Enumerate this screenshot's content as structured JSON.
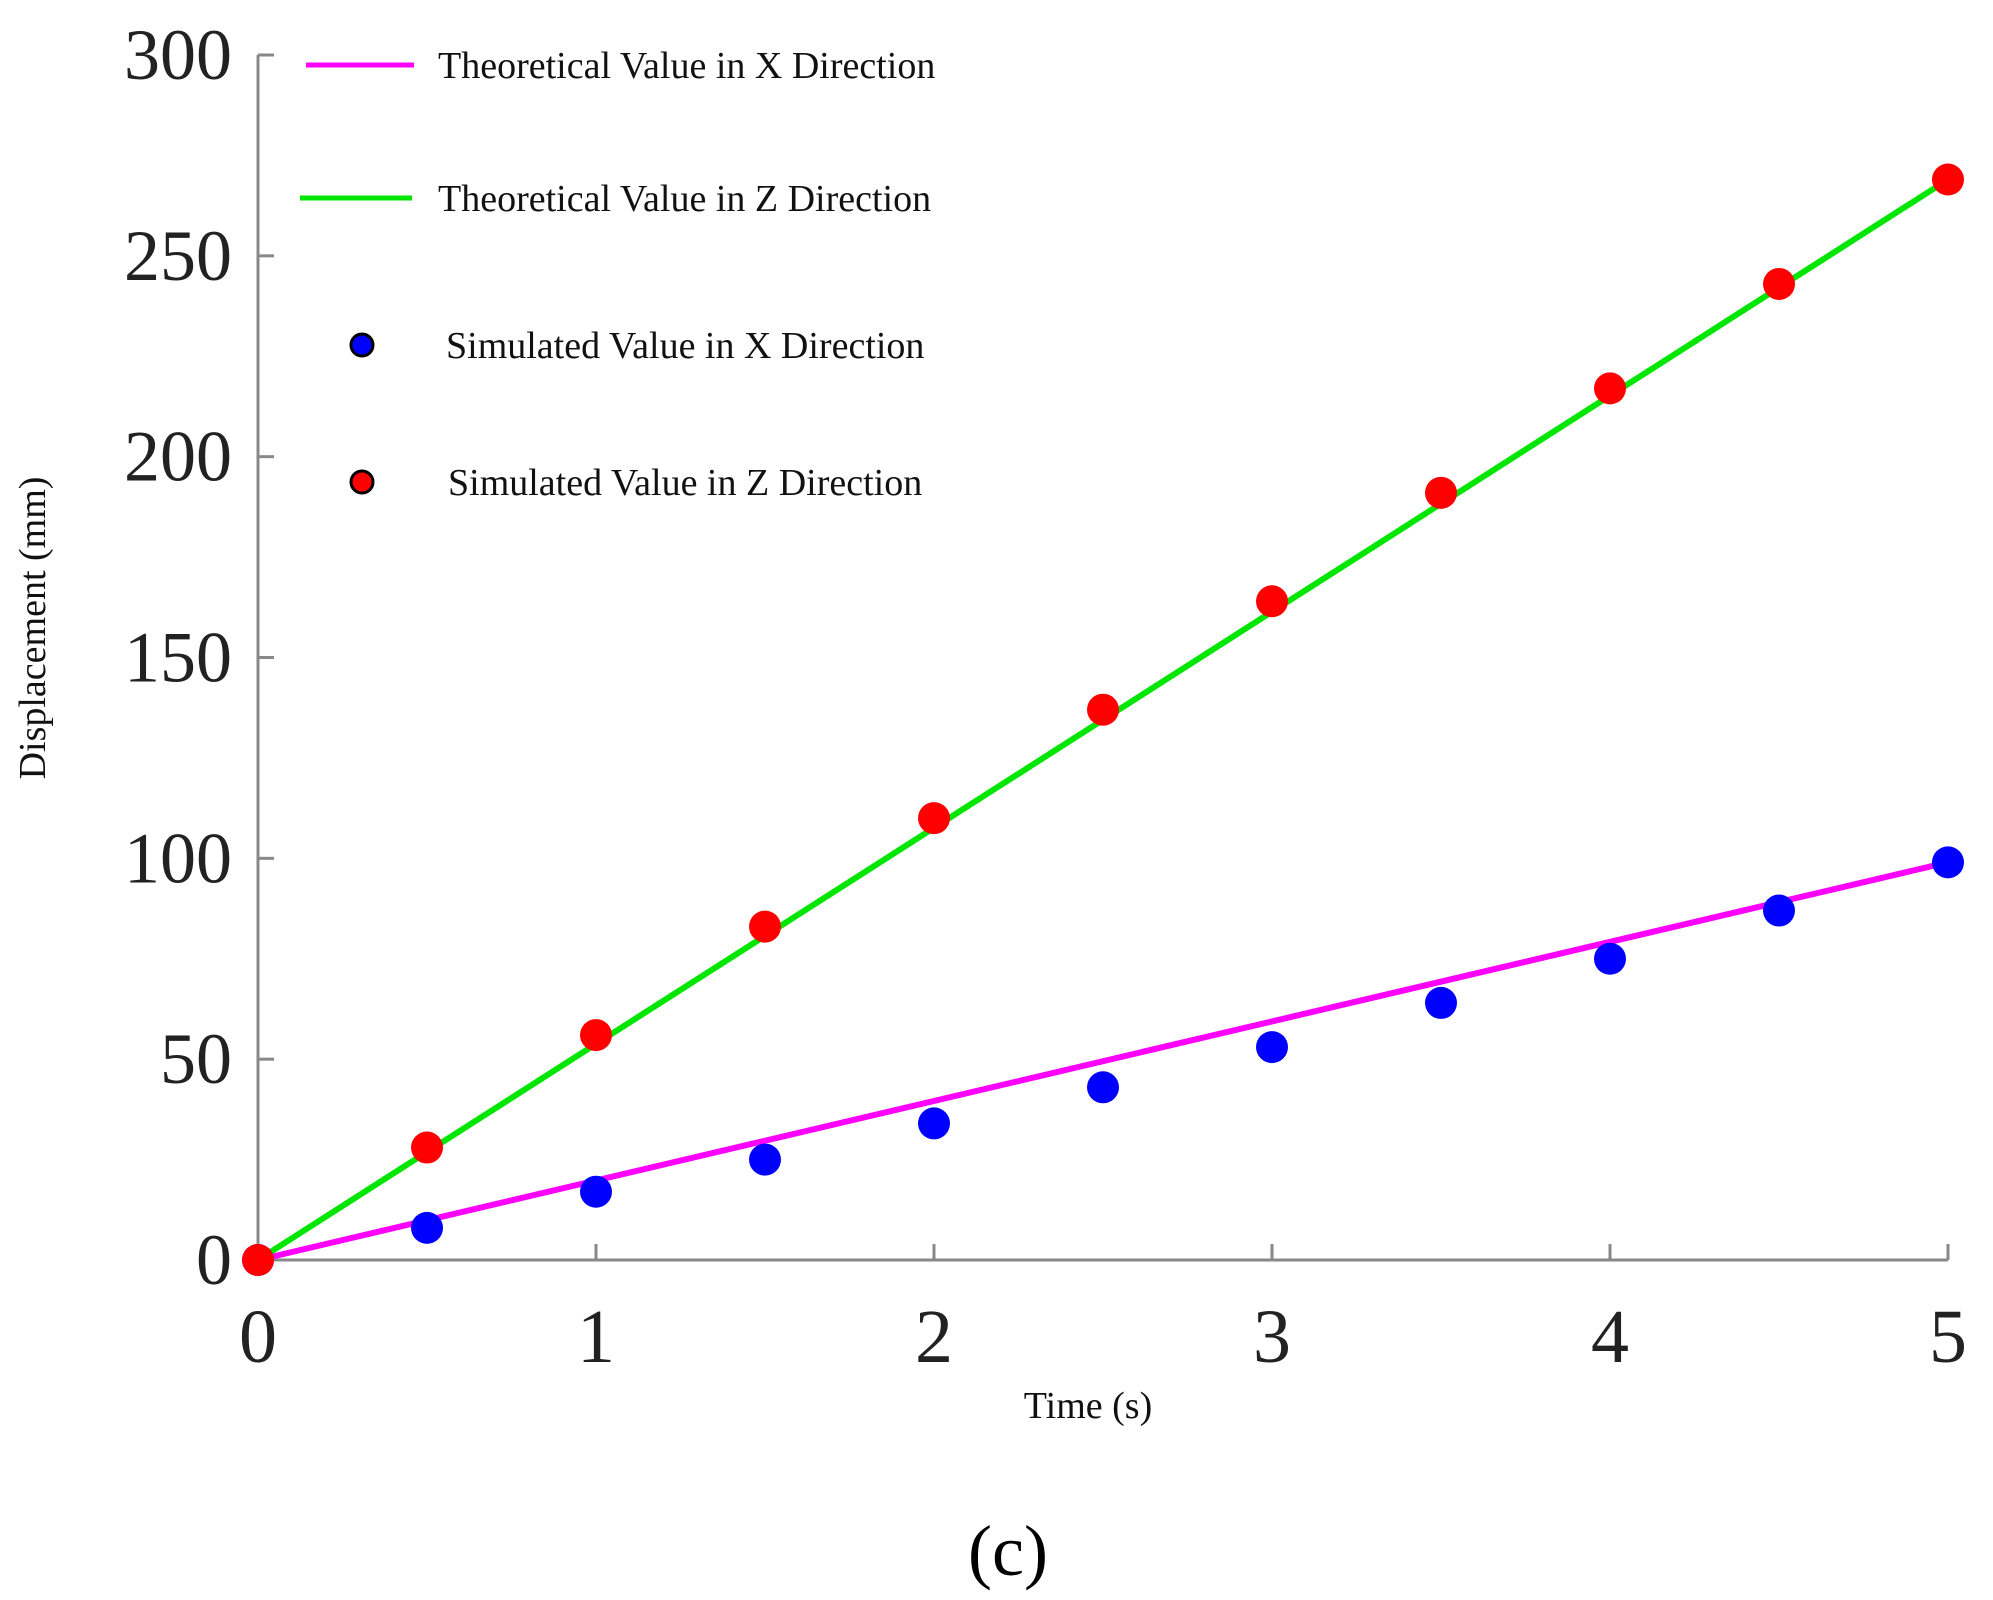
{
  "chart_data": {
    "type": "line",
    "title": "",
    "xlabel": "Time (s)",
    "ylabel": "Displacement (mm)",
    "xlim": [
      0,
      5
    ],
    "ylim": [
      0,
      300
    ],
    "x_ticks": [
      "0",
      "1",
      "2",
      "3",
      "4",
      "5"
    ],
    "y_ticks": [
      "0",
      "50",
      "100",
      "150",
      "200",
      "250",
      "300"
    ],
    "grid": false,
    "legend_position": "top-left",
    "panel_label": "(c)",
    "series": [
      {
        "name": "Theoretical Value in X Direction",
        "kind": "line",
        "color": "#ff00ff",
        "x": [
          0,
          5
        ],
        "y": [
          0,
          99
        ]
      },
      {
        "name": "Theoretical Value in Z Direction",
        "kind": "line",
        "color": "#00e600",
        "x": [
          0,
          5
        ],
        "y": [
          0,
          269
        ]
      },
      {
        "name": "Simulated Value in X Direction",
        "kind": "scatter",
        "color": "#0000ff",
        "x": [
          0,
          0.5,
          1,
          1.5,
          2,
          2.5,
          3,
          3.5,
          4,
          4.5,
          5
        ],
        "y": [
          0,
          8,
          17,
          25,
          34,
          43,
          53,
          64,
          75,
          87,
          99
        ]
      },
      {
        "name": "Simulated Value in Z Direction",
        "kind": "scatter",
        "color": "#ff0000",
        "x": [
          0,
          0.5,
          1,
          1.5,
          2,
          2.5,
          3,
          3.5,
          4,
          4.5,
          5
        ],
        "y": [
          0,
          28,
          56,
          83,
          110,
          137,
          164,
          191,
          217,
          243,
          269
        ]
      }
    ]
  }
}
